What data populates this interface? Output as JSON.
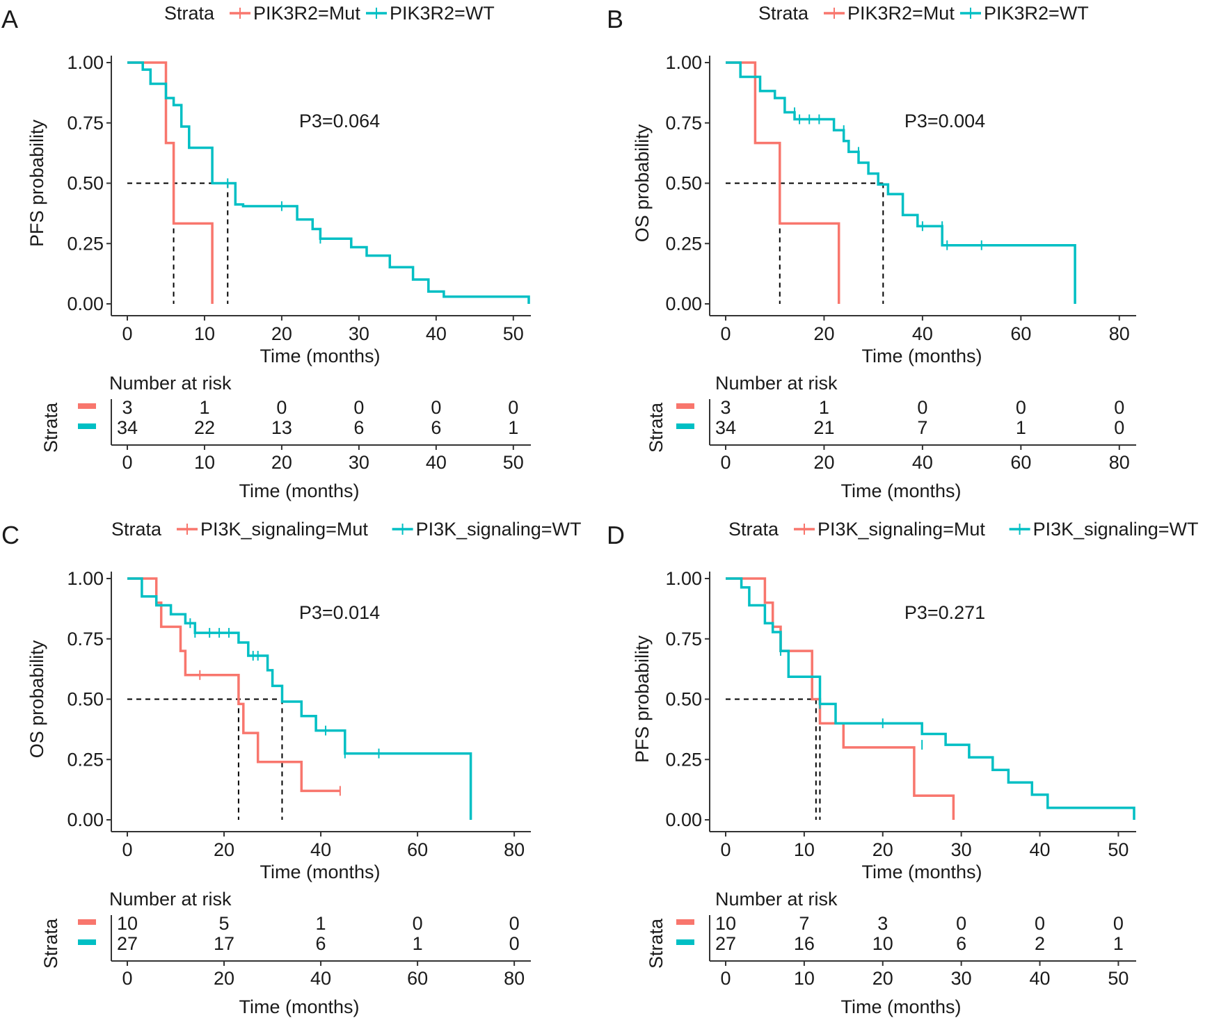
{
  "colors": {
    "mut": "#F8766D",
    "wt": "#00BFC4",
    "axis": "#333333",
    "text": "#1a1a1a"
  },
  "chart_data": [
    {
      "type": "line",
      "panel_label": "A",
      "legend": {
        "title": "Strata",
        "placement": "top",
        "entries": [
          "PIK3R2=Mut",
          "PIK3R2=WT"
        ]
      },
      "ylabel": "PFS probability",
      "xlabel": "Time (months)",
      "ylim": [
        0,
        1
      ],
      "xlim": [
        0,
        52
      ],
      "xticks": [
        0,
        10,
        20,
        30,
        40,
        50
      ],
      "yticks": [
        "0.00",
        "0.25",
        "0.50",
        "0.75",
        "1.00"
      ],
      "p_value": "P3=0.064",
      "median_lines": [
        6,
        13
      ],
      "series": [
        {
          "name": "PIK3R2=Mut",
          "steps": [
            [
              0,
              1
            ],
            [
              5,
              1
            ],
            [
              5,
              0.667
            ],
            [
              6,
              0.667
            ],
            [
              6,
              0.333
            ],
            [
              11,
              0.333
            ],
            [
              11,
              0
            ]
          ],
          "censors": []
        },
        {
          "name": "PIK3R2=WT",
          "steps": [
            [
              0,
              1
            ],
            [
              2,
              1
            ],
            [
              2,
              0.971
            ],
            [
              3,
              0.971
            ],
            [
              3,
              0.912
            ],
            [
              5,
              0.912
            ],
            [
              5,
              0.853
            ],
            [
              6,
              0.853
            ],
            [
              6,
              0.824
            ],
            [
              7,
              0.824
            ],
            [
              7,
              0.735
            ],
            [
              8,
              0.735
            ],
            [
              8,
              0.647
            ],
            [
              11,
              0.647
            ],
            [
              11,
              0.5
            ],
            [
              14,
              0.5
            ],
            [
              14,
              0.412
            ],
            [
              15,
              0.412
            ],
            [
              15,
              0.405
            ],
            [
              22,
              0.405
            ],
            [
              22,
              0.35
            ],
            [
              24,
              0.35
            ],
            [
              24,
              0.31
            ],
            [
              25,
              0.31
            ],
            [
              25,
              0.27
            ],
            [
              29,
              0.27
            ],
            [
              29,
              0.235
            ],
            [
              31,
              0.235
            ],
            [
              31,
              0.2
            ],
            [
              34,
              0.2
            ],
            [
              34,
              0.152
            ],
            [
              37,
              0.152
            ],
            [
              37,
              0.101
            ],
            [
              39,
              0.101
            ],
            [
              39,
              0.051
            ],
            [
              41,
              0.051
            ],
            [
              41,
              0.03
            ],
            [
              52,
              0.03
            ],
            [
              52,
              0
            ]
          ],
          "censors": [
            [
              13,
              0.5
            ],
            [
              20,
              0.405
            ],
            [
              25,
              0.27
            ]
          ]
        }
      ],
      "risk_table": {
        "title": "Number at risk",
        "strata_label": "Strata",
        "times": [
          0,
          10,
          20,
          30,
          40,
          50
        ],
        "rows": [
          [
            "3",
            "1",
            "0",
            "0",
            "0",
            "0"
          ],
          [
            "34",
            "22",
            "13",
            "6",
            "6",
            "1"
          ]
        ],
        "xlabel": "Time (months)"
      }
    },
    {
      "type": "line",
      "panel_label": "B",
      "legend": {
        "title": "Strata",
        "placement": "top",
        "entries": [
          "PIK3R2=Mut",
          "PIK3R2=WT"
        ]
      },
      "ylabel": "OS probability",
      "xlabel": "Time (months)",
      "ylim": [
        0,
        1
      ],
      "xlim": [
        0,
        83
      ],
      "xticks": [
        0,
        20,
        40,
        60,
        80
      ],
      "yticks": [
        "0.00",
        "0.25",
        "0.50",
        "0.75",
        "1.00"
      ],
      "p_value": "P3=0.004",
      "median_lines": [
        11,
        32
      ],
      "series": [
        {
          "name": "PIK3R2=Mut",
          "steps": [
            [
              0,
              1
            ],
            [
              6,
              1
            ],
            [
              6,
              0.667
            ],
            [
              11,
              0.667
            ],
            [
              11,
              0.333
            ],
            [
              23,
              0.333
            ],
            [
              23,
              0
            ]
          ],
          "censors": []
        },
        {
          "name": "PIK3R2=WT",
          "steps": [
            [
              0,
              1
            ],
            [
              3,
              1
            ],
            [
              3,
              0.941
            ],
            [
              7,
              0.941
            ],
            [
              7,
              0.882
            ],
            [
              10,
              0.882
            ],
            [
              10,
              0.853
            ],
            [
              12,
              0.853
            ],
            [
              12,
              0.794
            ],
            [
              14,
              0.794
            ],
            [
              14,
              0.765
            ],
            [
              22,
              0.765
            ],
            [
              22,
              0.72
            ],
            [
              24,
              0.72
            ],
            [
              24,
              0.675
            ],
            [
              25,
              0.675
            ],
            [
              25,
              0.63
            ],
            [
              27,
              0.63
            ],
            [
              27,
              0.585
            ],
            [
              29,
              0.585
            ],
            [
              29,
              0.54
            ],
            [
              31,
              0.54
            ],
            [
              31,
              0.495
            ],
            [
              33,
              0.495
            ],
            [
              33,
              0.455
            ],
            [
              36,
              0.455
            ],
            [
              36,
              0.368
            ],
            [
              39,
              0.368
            ],
            [
              39,
              0.322
            ],
            [
              44,
              0.322
            ],
            [
              44,
              0.243
            ],
            [
              71,
              0.243
            ],
            [
              71,
              0
            ]
          ],
          "censors": [
            [
              14,
              0.794
            ],
            [
              15,
              0.765
            ],
            [
              17,
              0.765
            ],
            [
              19,
              0.765
            ],
            [
              24,
              0.72
            ],
            [
              27,
              0.63
            ],
            [
              40,
              0.322
            ],
            [
              44,
              0.322
            ],
            [
              45,
              0.243
            ],
            [
              52,
              0.243
            ]
          ]
        }
      ],
      "risk_table": {
        "title": "Number at risk",
        "strata_label": "Strata",
        "times": [
          0,
          20,
          40,
          60,
          80
        ],
        "rows": [
          [
            "3",
            "1",
            "0",
            "0",
            "0"
          ],
          [
            "34",
            "21",
            "7",
            "1",
            "0"
          ]
        ],
        "xlabel": "Time (months)"
      }
    },
    {
      "type": "line",
      "panel_label": "C",
      "legend": {
        "title": "Strata",
        "placement": "top",
        "entries": [
          "PI3K_signaling=Mut",
          "PI3K_signaling=WT"
        ]
      },
      "ylabel": "OS probability",
      "xlabel": "Time (months)",
      "ylim": [
        0,
        1
      ],
      "xlim": [
        0,
        83
      ],
      "xticks": [
        0,
        20,
        40,
        60,
        80
      ],
      "yticks": [
        "0.00",
        "0.25",
        "0.50",
        "0.75",
        "1.00"
      ],
      "p_value": "P3=0.014",
      "median_lines": [
        23,
        32
      ],
      "series": [
        {
          "name": "PI3K_signaling=Mut",
          "steps": [
            [
              0,
              1
            ],
            [
              6,
              1
            ],
            [
              6,
              0.9
            ],
            [
              7,
              0.9
            ],
            [
              7,
              0.8
            ],
            [
              11,
              0.8
            ],
            [
              11,
              0.7
            ],
            [
              12,
              0.7
            ],
            [
              12,
              0.6
            ],
            [
              23,
              0.6
            ],
            [
              23,
              0.48
            ],
            [
              24,
              0.48
            ],
            [
              24,
              0.36
            ],
            [
              27,
              0.36
            ],
            [
              27,
              0.24
            ],
            [
              36,
              0.24
            ],
            [
              36,
              0.12
            ],
            [
              44,
              0.12
            ]
          ],
          "censors": [
            [
              15,
              0.6
            ],
            [
              44,
              0.12
            ]
          ]
        },
        {
          "name": "PI3K_signaling=WT",
          "steps": [
            [
              0,
              1
            ],
            [
              3,
              1
            ],
            [
              3,
              0.926
            ],
            [
              6,
              0.926
            ],
            [
              6,
              0.889
            ],
            [
              9,
              0.889
            ],
            [
              9,
              0.852
            ],
            [
              12,
              0.852
            ],
            [
              12,
              0.815
            ],
            [
              14,
              0.815
            ],
            [
              14,
              0.775
            ],
            [
              23,
              0.775
            ],
            [
              23,
              0.735
            ],
            [
              25,
              0.735
            ],
            [
              25,
              0.68
            ],
            [
              29,
              0.68
            ],
            [
              29,
              0.62
            ],
            [
              30,
              0.62
            ],
            [
              30,
              0.555
            ],
            [
              32,
              0.555
            ],
            [
              32,
              0.49
            ],
            [
              36,
              0.49
            ],
            [
              36,
              0.43
            ],
            [
              39,
              0.43
            ],
            [
              39,
              0.37
            ],
            [
              45,
              0.37
            ],
            [
              45,
              0.275
            ],
            [
              71,
              0.275
            ],
            [
              71,
              0
            ]
          ],
          "censors": [
            [
              13,
              0.815
            ],
            [
              14,
              0.775
            ],
            [
              17,
              0.775
            ],
            [
              19,
              0.775
            ],
            [
              21,
              0.775
            ],
            [
              26,
              0.68
            ],
            [
              27,
              0.68
            ],
            [
              41,
              0.37
            ],
            [
              45,
              0.275
            ],
            [
              52,
              0.275
            ]
          ]
        }
      ],
      "risk_table": {
        "title": "Number at risk",
        "strata_label": "Strata",
        "times": [
          0,
          20,
          40,
          60,
          80
        ],
        "rows": [
          [
            "10",
            "5",
            "1",
            "0",
            "0"
          ],
          [
            "27",
            "17",
            "6",
            "1",
            "0"
          ]
        ],
        "xlabel": "Time (months)"
      }
    },
    {
      "type": "line",
      "panel_label": "D",
      "legend": {
        "title": "Strata",
        "placement": "top",
        "entries": [
          "PI3K_signaling=Mut",
          "PI3K_signaling=WT"
        ]
      },
      "ylabel": "PFS probability",
      "xlabel": "Time (months)",
      "ylim": [
        0,
        1
      ],
      "xlim": [
        0,
        52
      ],
      "xticks": [
        0,
        10,
        20,
        30,
        40,
        50
      ],
      "yticks": [
        "0.00",
        "0.25",
        "0.50",
        "0.75",
        "1.00"
      ],
      "p_value": "P3=0.271",
      "median_lines": [
        11.5,
        12
      ],
      "series": [
        {
          "name": "PI3K_signaling=Mut",
          "steps": [
            [
              0,
              1
            ],
            [
              5,
              1
            ],
            [
              5,
              0.9
            ],
            [
              6,
              0.9
            ],
            [
              6,
              0.8
            ],
            [
              7,
              0.8
            ],
            [
              7,
              0.7
            ],
            [
              11,
              0.7
            ],
            [
              11,
              0.5
            ],
            [
              12,
              0.5
            ],
            [
              12,
              0.4
            ],
            [
              15,
              0.4
            ],
            [
              15,
              0.3
            ],
            [
              24,
              0.3
            ],
            [
              24,
              0.1
            ],
            [
              29,
              0.1
            ],
            [
              29,
              0
            ]
          ],
          "censors": []
        },
        {
          "name": "PI3K_signaling=WT",
          "steps": [
            [
              0,
              1
            ],
            [
              2,
              1
            ],
            [
              2,
              0.963
            ],
            [
              3,
              0.963
            ],
            [
              3,
              0.889
            ],
            [
              5,
              0.889
            ],
            [
              5,
              0.815
            ],
            [
              6,
              0.815
            ],
            [
              6,
              0.778
            ],
            [
              7,
              0.778
            ],
            [
              7,
              0.7
            ],
            [
              8,
              0.7
            ],
            [
              8,
              0.593
            ],
            [
              12,
              0.593
            ],
            [
              12,
              0.48
            ],
            [
              14,
              0.48
            ],
            [
              14,
              0.4
            ],
            [
              25,
              0.4
            ],
            [
              25,
              0.356
            ],
            [
              28,
              0.356
            ],
            [
              28,
              0.311
            ],
            [
              31,
              0.311
            ],
            [
              31,
              0.259
            ],
            [
              34,
              0.259
            ],
            [
              34,
              0.207
            ],
            [
              36,
              0.207
            ],
            [
              36,
              0.155
            ],
            [
              39,
              0.155
            ],
            [
              39,
              0.104
            ],
            [
              41,
              0.104
            ],
            [
              41,
              0.05
            ],
            [
              52,
              0.05
            ],
            [
              52,
              0
            ]
          ],
          "censors": [
            [
              7,
              0.7
            ],
            [
              12,
              0.48
            ],
            [
              20,
              0.4
            ],
            [
              25,
              0.311
            ]
          ]
        }
      ],
      "risk_table": {
        "title": "Number at risk",
        "strata_label": "Strata",
        "times": [
          0,
          10,
          20,
          30,
          40,
          50
        ],
        "rows": [
          [
            "10",
            "7",
            "3",
            "0",
            "0",
            "0"
          ],
          [
            "27",
            "16",
            "10",
            "6",
            "2",
            "1"
          ]
        ],
        "xlabel": "Time (months)"
      }
    }
  ]
}
